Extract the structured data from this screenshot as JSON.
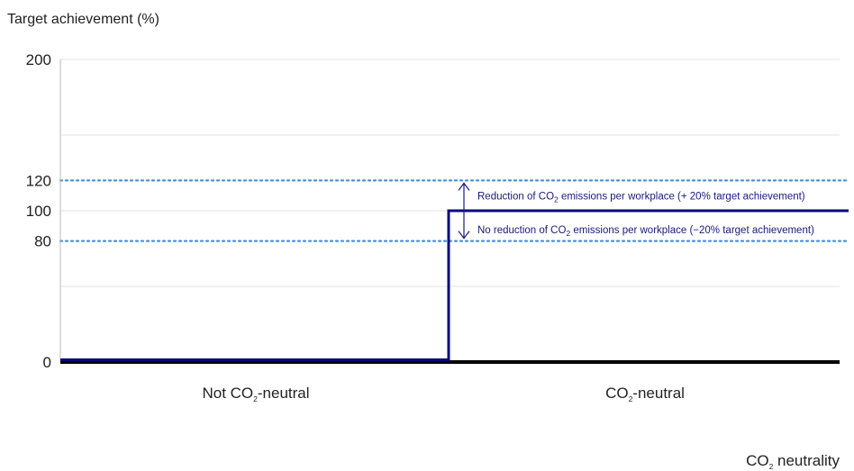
{
  "chart_data": {
    "type": "line",
    "title": "",
    "ylabel": "Target achievement (%)",
    "xlabel_main": "CO",
    "xlabel_sub": "2",
    "xlabel_rest": " neutrality",
    "ylim": [
      0,
      200
    ],
    "yticks": [
      0,
      80,
      100,
      120,
      200
    ],
    "gridlines": [
      50,
      150
    ],
    "categories": [
      {
        "pre": "Not CO",
        "sub": "2",
        "post": "-neutral"
      },
      {
        "pre": "CO",
        "sub": "2",
        "post": "-neutral"
      }
    ],
    "series": [
      {
        "values": [
          0,
          100
        ],
        "color": "#0a0a7a",
        "step": true
      }
    ],
    "reference_lines": [
      {
        "value": 120,
        "style": "dotted",
        "color": "#4a90d9"
      },
      {
        "value": 80,
        "style": "dotted",
        "color": "#4a90d9"
      }
    ],
    "annotations": [
      {
        "pre": "Reduction of CO",
        "sub": "2",
        "post": " emissions per workplace (+ 20% target achievement)"
      },
      {
        "pre": "No reduction of CO",
        "sub": "2",
        "post": " emissions per workplace (−20% target achievement)"
      }
    ]
  }
}
